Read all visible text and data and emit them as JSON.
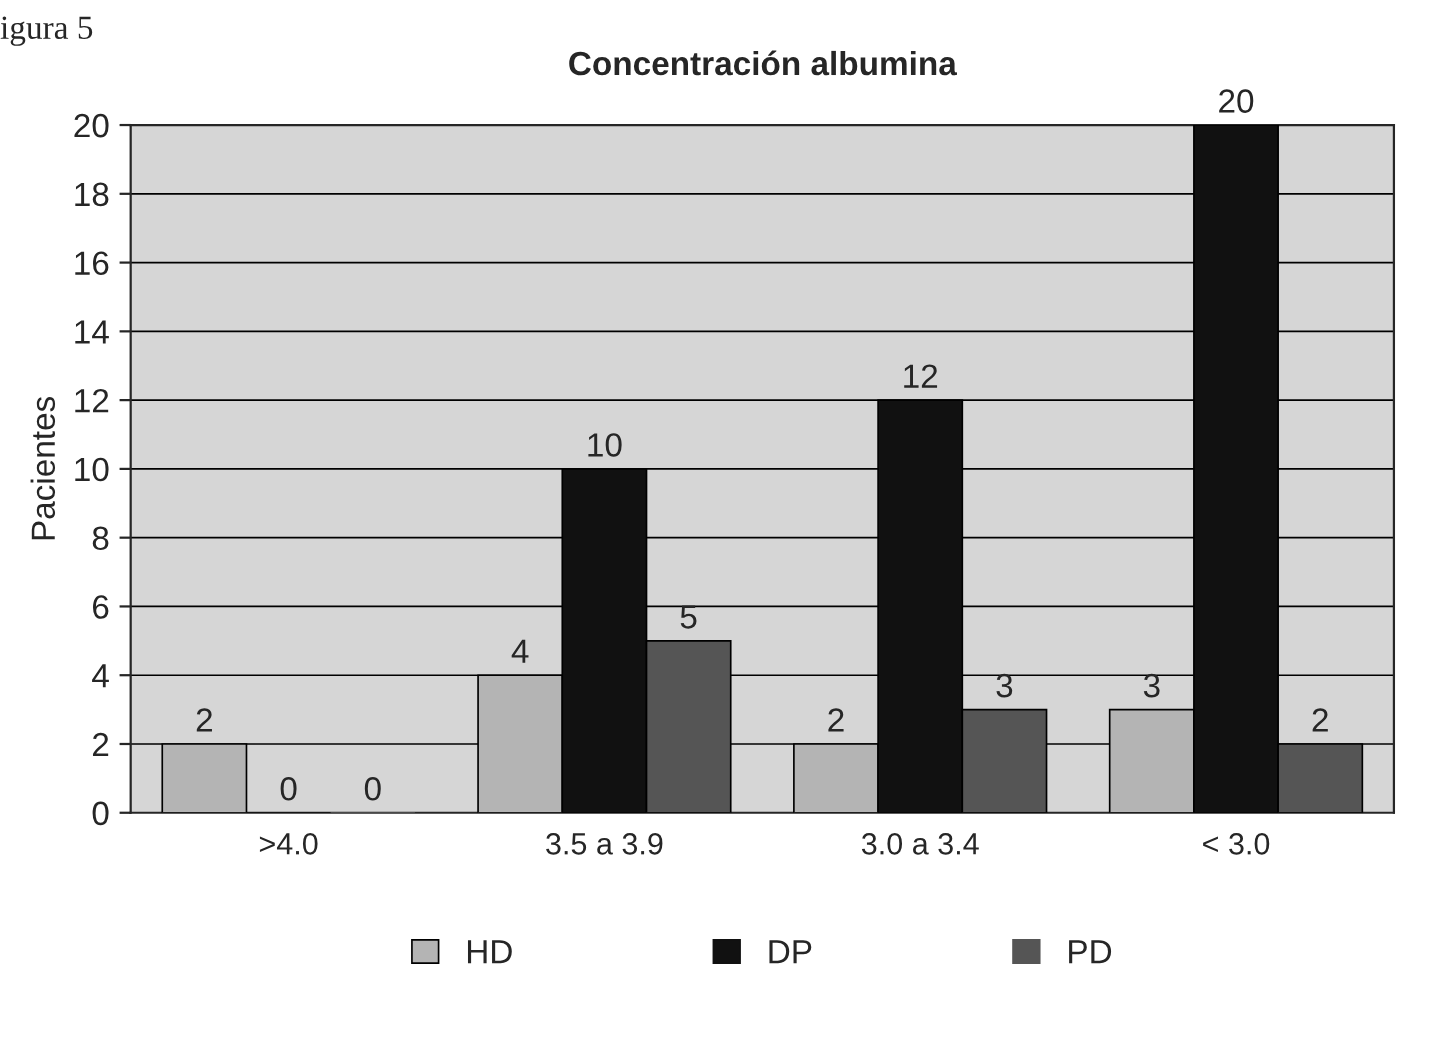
{
  "chart_data": {
    "type": "bar",
    "title": "Concentración albumina",
    "ylabel": "Pacientes",
    "categories": [
      ">4.0",
      "3.5 a 3.9",
      "3.0 a 3.4",
      "< 3.0"
    ],
    "series": [
      {
        "name": "HD",
        "color": "#b4b4b4",
        "values": [
          2,
          4,
          2,
          3
        ]
      },
      {
        "name": "DP",
        "color": "#111111",
        "values": [
          0,
          10,
          12,
          20
        ]
      },
      {
        "name": "PD",
        "color": "#555555",
        "values": [
          0,
          5,
          3,
          2
        ]
      }
    ],
    "ylim": [
      0,
      20
    ],
    "yticks": [
      0,
      2,
      4,
      6,
      8,
      10,
      12,
      14,
      16,
      18,
      20
    ],
    "grid": "y",
    "legend": "bottom",
    "data_labels": true,
    "annotations": [
      "igura 5"
    ]
  }
}
